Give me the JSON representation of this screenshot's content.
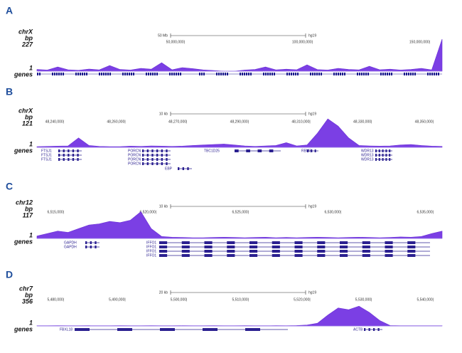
{
  "panels": [
    {
      "letter": "A",
      "chrom": "chrX",
      "unit": "bp",
      "max": 227,
      "min": 1,
      "track": "genes",
      "scale": "50 Mb",
      "assembly": "hg19",
      "ticks": [
        "50,000,000|",
        "100,000,000|",
        "150,000,000|"
      ],
      "genes": [],
      "signal": [
        12,
        8,
        30,
        10,
        6,
        15,
        9,
        40,
        12,
        8,
        20,
        14,
        60,
        10,
        25,
        18,
        9,
        5,
        0,
        0,
        8,
        12,
        30,
        9,
        14,
        10,
        45,
        11,
        8,
        20,
        12,
        9,
        35,
        10,
        14,
        8,
        12,
        20,
        9,
        227
      ]
    },
    {
      "letter": "B",
      "chrom": "chrX",
      "unit": "bp",
      "max": 121,
      "min": 1,
      "track": "genes",
      "scale": "10 kb",
      "assembly": "hg19",
      "ticks": [
        "48,240,000|",
        "48,260,000|",
        "48,270,000|",
        "48,290,000|",
        "48,310,000|",
        "48,330,000|",
        "48,350,000|"
      ],
      "genes": [
        "FTSJ1",
        "FTSJ1",
        "FTSJ1",
        "PORCN",
        "PORCN",
        "PORCN",
        "PORCN",
        "EBP",
        "TBC1D25",
        "RBM3",
        "WDR13",
        "WDR13",
        "WDR13"
      ],
      "signal": [
        3,
        4,
        5,
        6,
        40,
        8,
        4,
        3,
        3,
        5,
        4,
        6,
        5,
        4,
        5,
        8,
        10,
        12,
        14,
        10,
        6,
        4,
        6,
        8,
        20,
        6,
        10,
        60,
        121,
        90,
        40,
        8,
        6,
        5,
        6,
        10,
        12,
        8,
        5,
        4
      ]
    },
    {
      "letter": "C",
      "chrom": "chr12",
      "unit": "bp",
      "max": 117,
      "min": 1,
      "track": "genes",
      "scale": "10 kb",
      "assembly": "hg19",
      "ticks": [
        "6,515,000|",
        "6,520,000|",
        "6,525,000|",
        "6,530,000|",
        "6,535,000|"
      ],
      "genes": [
        "GAPDH",
        "GAPDH",
        "IFFO1",
        "IFFO1",
        "IFFO1",
        "IFFO1"
      ],
      "signal": [
        10,
        20,
        30,
        25,
        40,
        55,
        60,
        70,
        65,
        75,
        110,
        40,
        8,
        5,
        4,
        3,
        3,
        4,
        5,
        4,
        3,
        4,
        5,
        3,
        4,
        3,
        4,
        5,
        4,
        3,
        4,
        5,
        4,
        3,
        4,
        6,
        5,
        8,
        20,
        30
      ]
    },
    {
      "letter": "D",
      "chrom": "chr7",
      "unit": "bp",
      "max": 356,
      "min": 1,
      "track": "genes",
      "scale": "20 kb",
      "assembly": "hg19",
      "ticks": [
        "5,480,000|",
        "5,490,000|",
        "5,500,000|",
        "5,510,000|",
        "5,520,000|",
        "5,530,000|",
        "5,540,000|"
      ],
      "genes": [
        "FBXL18",
        "ACTB"
      ],
      "signal": [
        2,
        2,
        3,
        2,
        2,
        3,
        2,
        2,
        3,
        2,
        2,
        3,
        2,
        2,
        3,
        2,
        2,
        3,
        2,
        2,
        3,
        2,
        2,
        3,
        2,
        5,
        10,
        30,
        120,
        200,
        180,
        220,
        150,
        60,
        5,
        2,
        2,
        2,
        2,
        2
      ]
    }
  ]
}
